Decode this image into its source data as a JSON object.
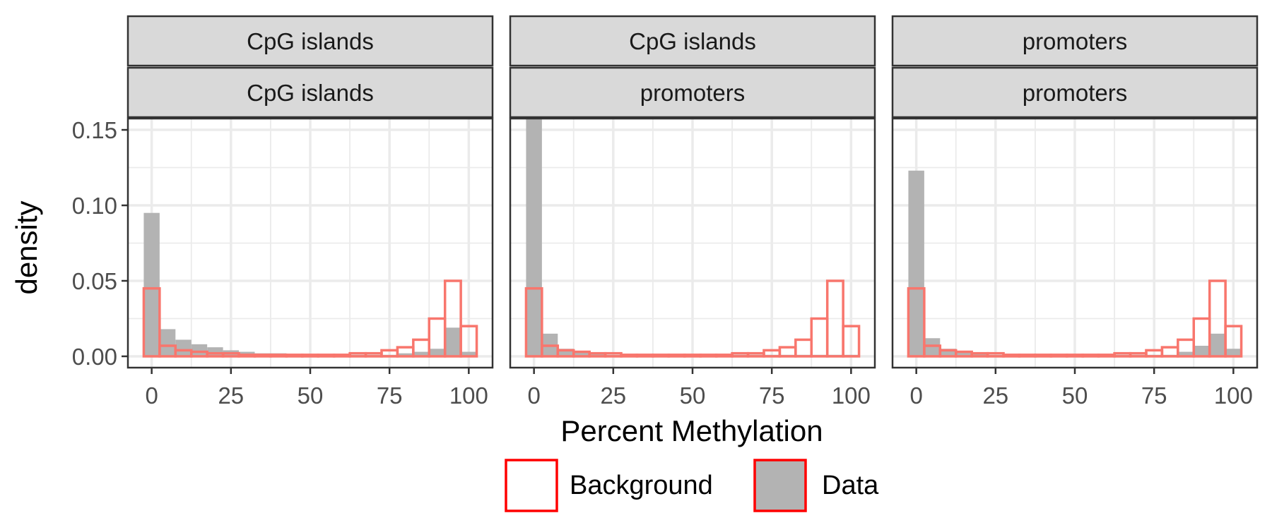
{
  "chart_data": {
    "type": "bar",
    "xlabel": "Percent Methylation",
    "ylabel": "density",
    "xlim": [
      -7.5,
      107.5
    ],
    "ylim": [
      -0.0075,
      0.1575
    ],
    "x_ticks": [
      0,
      25,
      50,
      75,
      100
    ],
    "x_tick_labels": [
      "0",
      "25",
      "50",
      "75",
      "100"
    ],
    "y_ticks": [
      0,
      0.05,
      0.1,
      0.15
    ],
    "y_tick_labels": [
      "0.00",
      "0.05",
      "0.10",
      "0.15"
    ],
    "bin_width": 5,
    "bin_centers": [
      0,
      5,
      10,
      15,
      20,
      25,
      30,
      35,
      40,
      45,
      50,
      55,
      60,
      65,
      70,
      75,
      80,
      85,
      90,
      95,
      100
    ],
    "grid": true,
    "legend_position": "bottom",
    "legend": [
      {
        "label": "Background",
        "fill": "#ffffff",
        "stroke": "#ff0000"
      },
      {
        "label": "Data",
        "fill": "#b3b3b3",
        "stroke": "#ff0000"
      }
    ],
    "colors": {
      "data_fill": "#b3b3b3",
      "background_stroke": "#f8766d",
      "legend_stroke": "#ff0000",
      "strip_fill": "#d9d9d9",
      "grid": "#ebebeb"
    },
    "facets": [
      {
        "strip_top": "CpG islands",
        "strip_bottom": "CpG islands",
        "data": [
          0.095,
          0.018,
          0.011,
          0.008,
          0.006,
          0.004,
          0.003,
          0.002,
          0.002,
          0.001,
          0.001,
          0.001,
          0.001,
          0.001,
          0.001,
          0.001,
          0.002,
          0.003,
          0.005,
          0.019,
          0.003
        ],
        "background": [
          0.045,
          0.007,
          0.004,
          0.003,
          0.002,
          0.002,
          0.001,
          0.001,
          0.001,
          0.001,
          0.001,
          0.001,
          0.001,
          0.002,
          0.002,
          0.004,
          0.006,
          0.011,
          0.025,
          0.05,
          0.02
        ]
      },
      {
        "strip_top": "CpG islands",
        "strip_bottom": "promoters",
        "data": [
          0.157,
          0.015,
          0.005,
          0.003,
          0.002,
          0.001,
          0.001,
          0.001,
          0.001,
          0.001,
          0.001,
          0.001,
          0.001,
          0.001,
          0.001,
          0.001,
          0.001,
          0.001,
          0.001,
          0.001,
          0.001
        ],
        "background": [
          0.045,
          0.007,
          0.004,
          0.003,
          0.002,
          0.002,
          0.001,
          0.001,
          0.001,
          0.001,
          0.001,
          0.001,
          0.001,
          0.002,
          0.002,
          0.004,
          0.006,
          0.011,
          0.025,
          0.05,
          0.02
        ]
      },
      {
        "strip_top": "promoters",
        "strip_bottom": "promoters",
        "data": [
          0.123,
          0.012,
          0.005,
          0.003,
          0.002,
          0.001,
          0.001,
          0.001,
          0.001,
          0.001,
          0.001,
          0.001,
          0.001,
          0.001,
          0.001,
          0.001,
          0.001,
          0.003,
          0.007,
          0.015,
          0.005
        ],
        "background": [
          0.045,
          0.007,
          0.004,
          0.003,
          0.002,
          0.002,
          0.001,
          0.001,
          0.001,
          0.001,
          0.001,
          0.001,
          0.001,
          0.002,
          0.002,
          0.004,
          0.006,
          0.011,
          0.025,
          0.05,
          0.02
        ]
      }
    ]
  }
}
